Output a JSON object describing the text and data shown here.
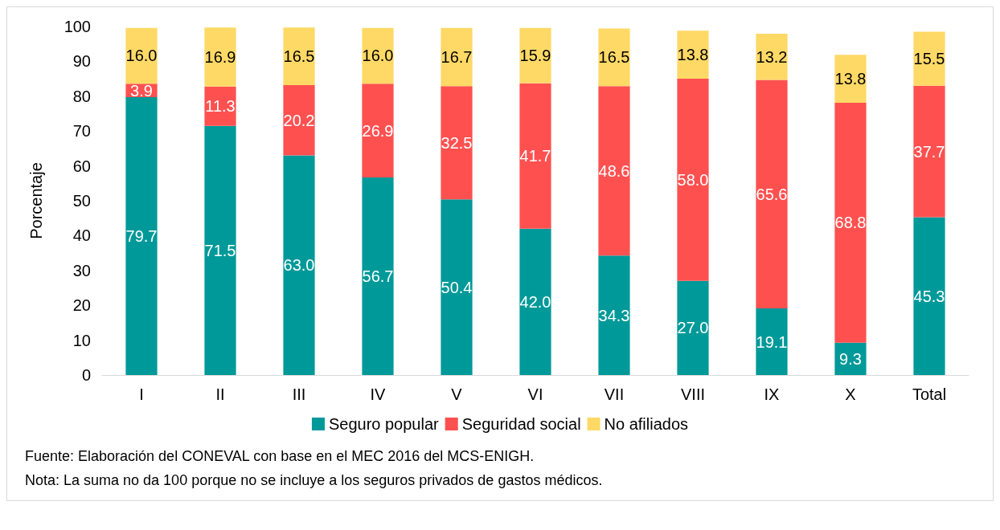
{
  "chart_data": {
    "type": "bar",
    "stacked": true,
    "ylabel": "Porcentaje",
    "categories": [
      "I",
      "II",
      "III",
      "IV",
      "V",
      "VI",
      "VII",
      "VIII",
      "IX",
      "X",
      "Total"
    ],
    "series": [
      {
        "name": "Seguro popular",
        "color": "#009999",
        "values": [
          79.7,
          71.5,
          63.0,
          56.7,
          50.4,
          42.0,
          34.3,
          27.0,
          19.1,
          9.3,
          45.3
        ],
        "value_labels": [
          "79.7",
          "71.5",
          "63.0",
          "56.7",
          "50.4",
          "42.0",
          "34.3",
          "27.0",
          "19.1",
          "9.3",
          "45.3"
        ]
      },
      {
        "name": "Seguridad social",
        "color": "#ff5050",
        "values": [
          3.9,
          11.3,
          20.2,
          26.9,
          32.5,
          41.7,
          48.6,
          58.0,
          65.6,
          68.8,
          37.7
        ],
        "value_labels": [
          "3.9",
          "11.3",
          "20.2",
          "26.9",
          "32.5",
          "41.7",
          "48.6",
          "58.0",
          "65.6",
          "68.8",
          "37.7"
        ]
      },
      {
        "name": "No afiliados",
        "color": "#ffd966",
        "values": [
          16.0,
          16.9,
          16.5,
          16.0,
          16.7,
          15.9,
          16.5,
          13.8,
          13.2,
          13.8,
          15.5
        ],
        "value_labels": [
          "16.0",
          "16.9",
          "16.5",
          "16.0",
          "16.7",
          "15.9",
          "16.5",
          "13.8",
          "13.2",
          "13.8",
          "15.5"
        ]
      }
    ],
    "ylim": [
      0,
      100
    ],
    "yticks": [
      0,
      10,
      20,
      30,
      40,
      50,
      60,
      70,
      80,
      90,
      100
    ],
    "grid": false,
    "legend": "bottom",
    "annotations": [
      "Fuente: Elaboración del CONEVAL con base en el MEC 2016 del MCS-ENIGH.",
      "Nota: La suma no da 100 porque no se incluye a los seguros privados de gastos médicos."
    ]
  }
}
